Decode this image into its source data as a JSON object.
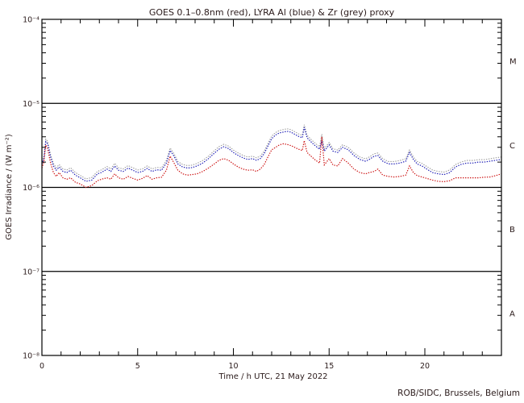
{
  "title": "GOES 0.1–0.8nm (red), LYRA Al (blue) & Zr (grey) proxy",
  "footer": "ROB/SIDC, Brussels, Belgium",
  "colors": {
    "red": "#cc1111",
    "blue": "#1a1ab4",
    "grey": "#999999",
    "axis": "#000000",
    "text": "#2a1a1a"
  },
  "chart_data": {
    "type": "line",
    "title": "GOES 0.1–0.8nm (red), LYRA Al (blue) & Zr (grey) proxy",
    "xlabel": "Time / h UTC, 21 May 2022",
    "ylabel": "GOES Irradiance / (W m⁻²)",
    "x_axis": {
      "xlim": [
        0,
        24
      ],
      "major_ticks": [
        0,
        5,
        10,
        15,
        20
      ],
      "major_tick_labels": [
        "0",
        "5",
        "10",
        "15",
        "20"
      ],
      "minor_tick_step_hours": 1
    },
    "y_axis": {
      "scale": "log",
      "ylim": [
        1e-08,
        0.0001
      ],
      "tick_exponents": [
        -4,
        -5,
        -6,
        -7,
        -8
      ],
      "tick_labels": [
        "10⁻⁴",
        "10⁻⁵",
        "10⁻⁶",
        "10⁻⁷",
        "10⁻⁸"
      ],
      "decade_gridline_exponents": [
        -5,
        -6,
        -7
      ],
      "log_minor_ticks": true
    },
    "flare_classes": [
      {
        "label": "M",
        "band_exponents": [
          -5,
          -4
        ]
      },
      {
        "label": "C",
        "band_exponents": [
          -6,
          -5
        ]
      },
      {
        "label": "B",
        "band_exponents": [
          -7,
          -6
        ]
      },
      {
        "label": "A",
        "band_exponents": [
          -8,
          -7
        ]
      }
    ],
    "unit_of_values": "1e-6 W m^-2",
    "x": [
      0,
      0.1,
      0.2,
      0.3,
      0.45,
      0.6,
      0.75,
      0.9,
      1.1,
      1.3,
      1.5,
      1.75,
      2.0,
      2.3,
      2.6,
      2.9,
      3.1,
      3.4,
      3.6,
      3.8,
      4.0,
      4.25,
      4.5,
      4.75,
      5.0,
      5.25,
      5.5,
      5.75,
      6.0,
      6.25,
      6.5,
      6.7,
      6.9,
      7.1,
      7.35,
      7.6,
      7.85,
      8.1,
      8.4,
      8.7,
      9.0,
      9.25,
      9.5,
      9.75,
      10.0,
      10.25,
      10.5,
      10.75,
      11.0,
      11.2,
      11.4,
      11.6,
      11.8,
      12.0,
      12.2,
      12.4,
      12.6,
      12.8,
      13.0,
      13.2,
      13.4,
      13.6,
      13.7,
      13.85,
      14.1,
      14.3,
      14.5,
      14.62,
      14.75,
      15.0,
      15.2,
      15.45,
      15.7,
      16.0,
      16.3,
      16.6,
      16.9,
      17.1,
      17.35,
      17.55,
      17.8,
      18.1,
      18.4,
      18.7,
      19.0,
      19.2,
      19.4,
      19.6,
      19.85,
      20.1,
      20.4,
      20.7,
      21.0,
      21.3,
      21.6,
      21.9,
      22.2,
      22.5,
      22.8,
      23.1,
      23.4,
      23.7,
      24.0
    ],
    "series": [
      {
        "name": "LYRA Zr proxy",
        "color_key": "grey",
        "values": [
          2.03,
          2.35,
          3.75,
          3.53,
          2.46,
          1.93,
          1.71,
          1.87,
          1.66,
          1.61,
          1.71,
          1.5,
          1.39,
          1.26,
          1.31,
          1.55,
          1.61,
          1.77,
          1.66,
          1.93,
          1.71,
          1.66,
          1.82,
          1.71,
          1.61,
          1.66,
          1.8,
          1.66,
          1.73,
          1.71,
          2.09,
          2.94,
          2.51,
          2.03,
          1.87,
          1.82,
          1.84,
          1.93,
          2.09,
          2.35,
          2.73,
          3.05,
          3.26,
          3.1,
          2.78,
          2.57,
          2.41,
          2.3,
          2.35,
          2.25,
          2.35,
          2.68,
          3.32,
          4.07,
          4.49,
          4.76,
          4.87,
          4.98,
          4.87,
          4.6,
          4.33,
          4.17,
          5.56,
          4.17,
          3.64,
          3.32,
          3.05,
          4.3,
          2.89,
          3.42,
          2.89,
          2.78,
          3.21,
          3.0,
          2.57,
          2.3,
          2.19,
          2.3,
          2.51,
          2.57,
          2.19,
          2.03,
          2.03,
          2.09,
          2.19,
          2.78,
          2.3,
          2.03,
          1.93,
          1.77,
          1.61,
          1.55,
          1.52,
          1.61,
          1.87,
          2.01,
          2.09,
          2.09,
          2.14,
          2.14,
          2.19,
          2.25,
          2.3
        ]
      },
      {
        "name": "LYRA Al proxy",
        "color_key": "blue",
        "values": [
          1.9,
          2.2,
          3.5,
          3.3,
          2.3,
          1.8,
          1.6,
          1.75,
          1.55,
          1.5,
          1.6,
          1.4,
          1.3,
          1.18,
          1.22,
          1.45,
          1.5,
          1.65,
          1.55,
          1.8,
          1.6,
          1.55,
          1.7,
          1.6,
          1.5,
          1.55,
          1.68,
          1.55,
          1.62,
          1.6,
          1.95,
          2.75,
          2.35,
          1.9,
          1.75,
          1.7,
          1.72,
          1.8,
          1.95,
          2.2,
          2.55,
          2.85,
          3.05,
          2.9,
          2.6,
          2.4,
          2.25,
          2.15,
          2.2,
          2.1,
          2.2,
          2.5,
          3.1,
          3.8,
          4.2,
          4.45,
          4.55,
          4.65,
          4.55,
          4.3,
          4.05,
          3.9,
          5.2,
          3.9,
          3.4,
          3.1,
          2.85,
          3.6,
          2.7,
          3.2,
          2.7,
          2.6,
          3.0,
          2.8,
          2.4,
          2.15,
          2.05,
          2.15,
          2.35,
          2.4,
          2.05,
          1.9,
          1.9,
          1.95,
          2.05,
          2.6,
          2.15,
          1.9,
          1.8,
          1.65,
          1.5,
          1.45,
          1.42,
          1.5,
          1.75,
          1.88,
          1.95,
          1.95,
          2.0,
          2.0,
          2.05,
          2.1,
          2.15
        ]
      },
      {
        "name": "GOES 0.1–0.8nm",
        "color_key": "red",
        "values": [
          1.7,
          2.0,
          3.2,
          2.9,
          1.95,
          1.5,
          1.35,
          1.5,
          1.3,
          1.25,
          1.3,
          1.15,
          1.1,
          1.0,
          1.05,
          1.2,
          1.25,
          1.3,
          1.25,
          1.45,
          1.3,
          1.25,
          1.35,
          1.28,
          1.22,
          1.28,
          1.38,
          1.25,
          1.3,
          1.32,
          1.6,
          2.35,
          1.95,
          1.6,
          1.45,
          1.4,
          1.42,
          1.45,
          1.55,
          1.7,
          1.9,
          2.1,
          2.2,
          2.1,
          1.9,
          1.75,
          1.65,
          1.6,
          1.62,
          1.55,
          1.65,
          1.85,
          2.3,
          2.8,
          3.0,
          3.2,
          3.3,
          3.25,
          3.15,
          3.0,
          2.85,
          2.75,
          3.6,
          2.6,
          2.3,
          2.1,
          1.95,
          4.0,
          1.85,
          2.2,
          1.85,
          1.8,
          2.2,
          1.95,
          1.65,
          1.5,
          1.45,
          1.5,
          1.55,
          1.65,
          1.4,
          1.35,
          1.33,
          1.35,
          1.4,
          1.8,
          1.5,
          1.38,
          1.33,
          1.28,
          1.22,
          1.18,
          1.17,
          1.2,
          1.3,
          1.3,
          1.3,
          1.3,
          1.3,
          1.32,
          1.33,
          1.38,
          1.45
        ]
      }
    ]
  }
}
